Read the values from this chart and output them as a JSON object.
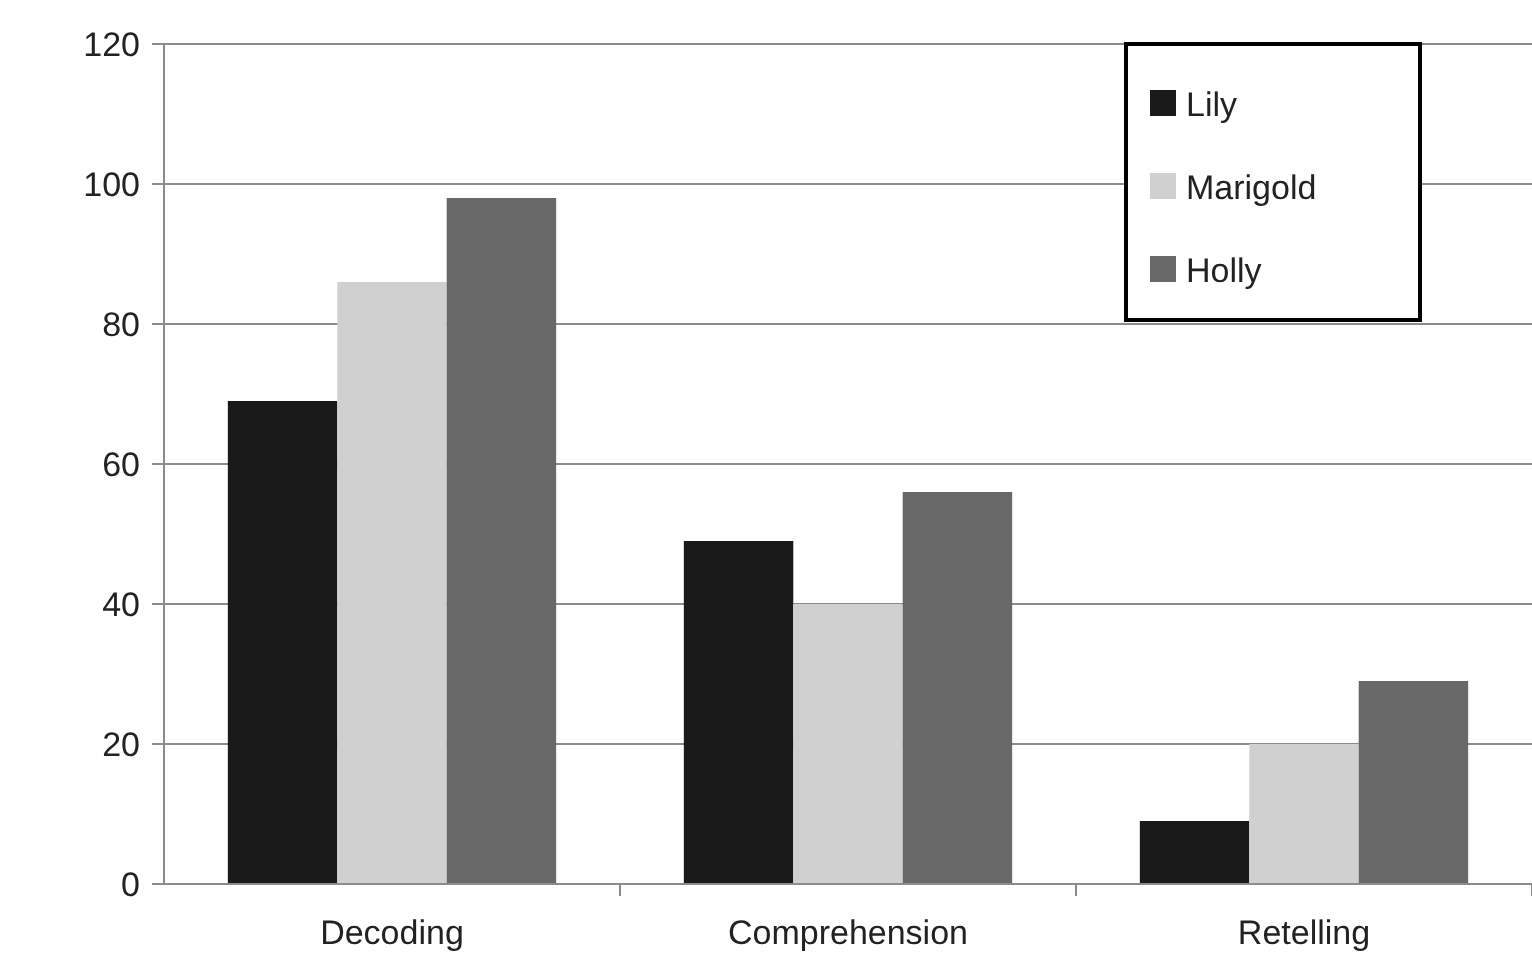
{
  "chart_data": {
    "type": "bar",
    "categories": [
      "Decoding",
      "Comprehension",
      "Retelling"
    ],
    "series": [
      {
        "name": "Lily",
        "color": "#1a1a1a",
        "values": [
          69,
          49,
          9
        ]
      },
      {
        "name": "Marigold",
        "color": "#d0d0d0",
        "values": [
          86,
          40,
          20
        ]
      },
      {
        "name": "Holly",
        "color": "#686868",
        "values": [
          98,
          56,
          29
        ]
      }
    ],
    "ylim": [
      0,
      120
    ],
    "yticks": [
      0,
      20,
      40,
      60,
      80,
      100,
      120
    ],
    "grid": "y",
    "legend": "top right"
  }
}
